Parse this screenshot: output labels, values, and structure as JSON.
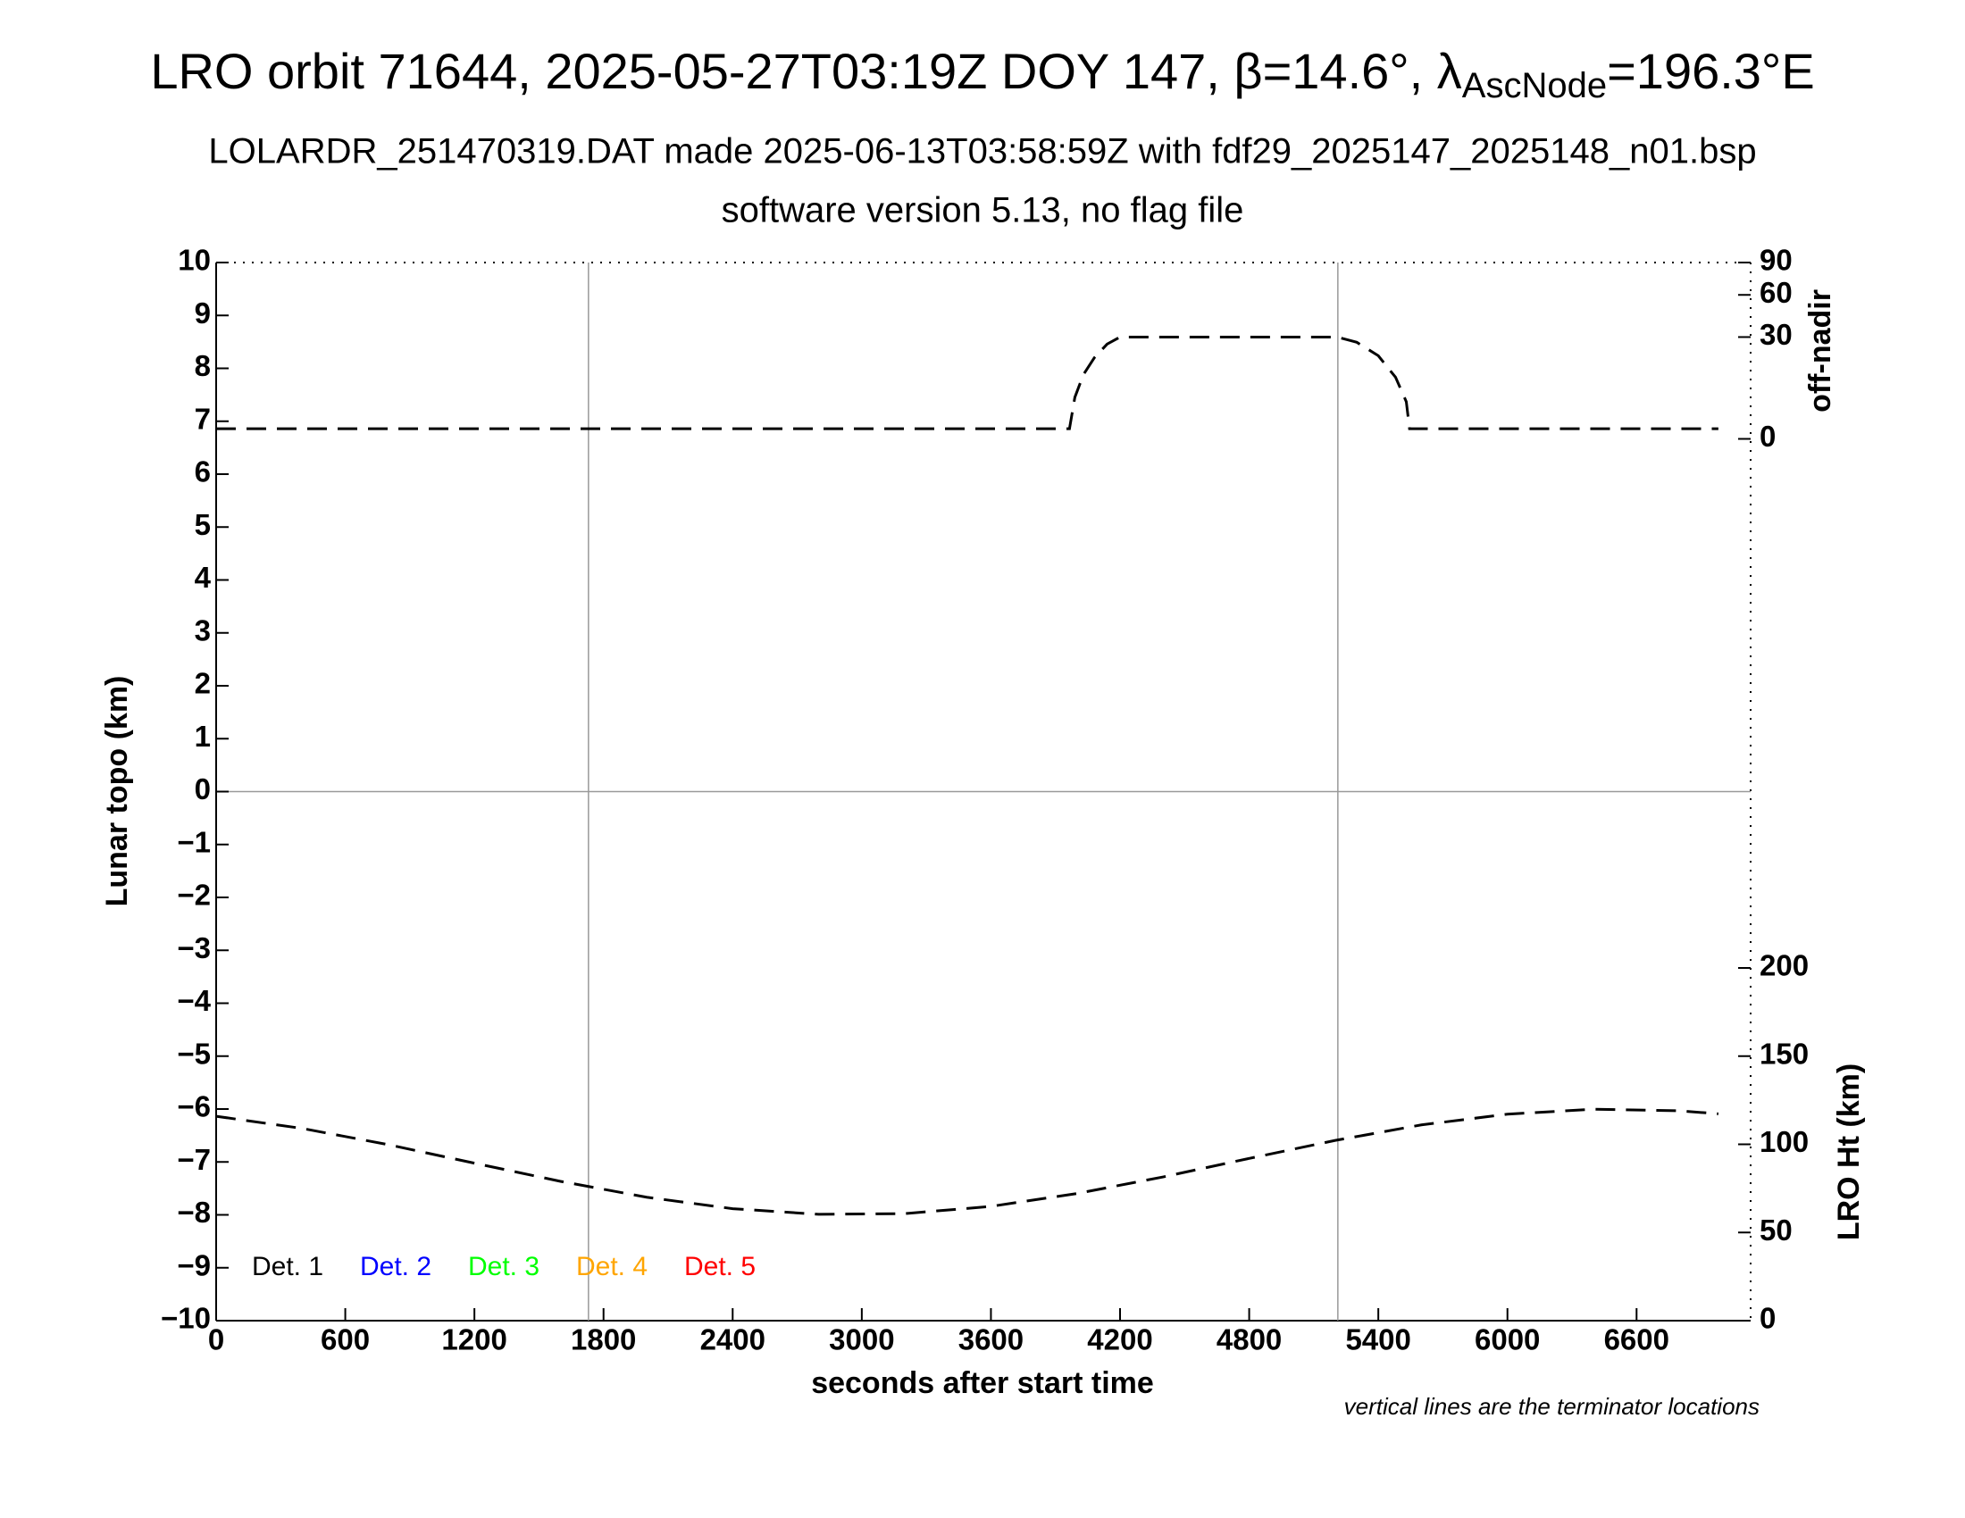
{
  "chart_data": {
    "type": "line",
    "title_parts": [
      "LRO orbit 71644, 2025-05-27T03:19Z DOY 147, β=14.6°, λ",
      "AscNode",
      "=196.3°E"
    ],
    "subtitle": "LOLARDR_251470319.DAT made 2025-06-13T03:58:59Z with fdf29_2025147_2025148_n01.bsp",
    "subtitle2": "software version 5.13, no flag file",
    "xlabel": "seconds after start time",
    "ylabel": "Lunar topo (km)",
    "y2label": "LRO Ht (km)",
    "y3label": "off-nadir",
    "annotation": "vertical lines are the terminator locations",
    "xlim": [
      0,
      7130
    ],
    "xticks": [
      0,
      600,
      1200,
      1800,
      2400,
      3000,
      3600,
      4200,
      4800,
      5400,
      6000,
      6600
    ],
    "ylim": [
      -10,
      10
    ],
    "yticks": [
      10,
      9,
      8,
      7,
      6,
      5,
      4,
      3,
      2,
      1,
      0,
      {
        "value": -1,
        "label": "−1"
      },
      {
        "value": -2,
        "label": "−2"
      },
      {
        "value": -3,
        "label": "−3"
      },
      {
        "value": -4,
        "label": "−4"
      },
      {
        "value": -5,
        "label": "−5"
      },
      {
        "value": -6,
        "label": "−6"
      },
      {
        "value": -7,
        "label": "−7"
      },
      {
        "value": -8,
        "label": "−8"
      },
      {
        "value": -9,
        "label": "−9"
      },
      {
        "value": -10,
        "label": "−10"
      }
    ],
    "y2lim": [
      0,
      600
    ],
    "y2ticks": [
      0,
      50,
      100,
      150,
      200
    ],
    "y3lim": [
      0,
      90
    ],
    "y3ticks": [
      0,
      30,
      60,
      90
    ],
    "y3scale": "sqrt",
    "vlines": [
      1730,
      5212
    ],
    "hlines": [
      0
    ],
    "legend": [
      {
        "label": "Det. 1",
        "color": "#000000"
      },
      {
        "label": "Det. 2",
        "color": "#0000ff"
      },
      {
        "label": "Det. 3",
        "color": "#00ff00"
      },
      {
        "label": "Det. 4",
        "color": "#ffa500"
      },
      {
        "label": "Det. 5",
        "color": "#ff0000"
      }
    ],
    "series": [
      {
        "axis": "y3",
        "color": "#000000",
        "x": [
          0,
          3965,
          3990,
          4030,
          4080,
          4140,
          4200,
          5210,
          5300,
          5400,
          5480,
          5530,
          5545,
          6980
        ],
        "values": [
          0.3,
          0.3,
          5,
          12,
          19,
          26,
          30,
          30,
          27,
          20,
          11,
          4,
          0.3,
          0.3
        ]
      },
      {
        "axis": "y2",
        "color": "#000000",
        "x": [
          0,
          400,
          800,
          1200,
          1600,
          2000,
          2400,
          2800,
          3200,
          3600,
          4000,
          4400,
          4800,
          5200,
          5600,
          6000,
          6400,
          6800,
          6980
        ],
        "values": [
          115.9,
          109.0,
          99.8,
          89.3,
          79.0,
          70.0,
          63.5,
          60.3,
          60.7,
          64.8,
          72.1,
          81.5,
          92.0,
          102.2,
          111.0,
          117.1,
          119.9,
          119.0,
          117.3
        ]
      }
    ]
  }
}
